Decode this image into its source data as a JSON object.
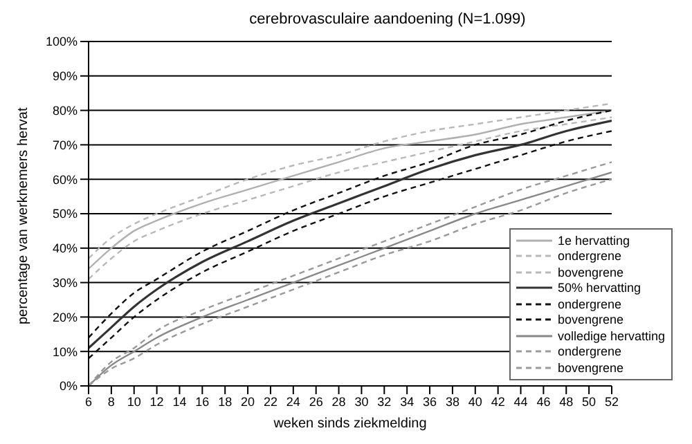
{
  "chart_data": {
    "type": "line",
    "title": "cerebrovasculaire aandoening (N=1.099)",
    "xlabel": "weken sinds ziekmelding",
    "ylabel": "percentage van werknemers hervat",
    "x": [
      6,
      8,
      10,
      12,
      16,
      20,
      24,
      28,
      32,
      36,
      40,
      44,
      48,
      52
    ],
    "series": [
      {
        "name": "1e hervatting",
        "color": "#b0b0b0",
        "line_style": "solid",
        "values": [
          34,
          40,
          45,
          48,
          53,
          57,
          61,
          65,
          69,
          71,
          73,
          76,
          78,
          80
        ]
      },
      {
        "name": "ondergrene",
        "color": "#b8b8b8",
        "line_style": "dashed",
        "values": [
          31,
          37,
          42,
          45,
          50,
          54,
          58,
          62,
          65,
          68,
          71,
          74,
          76,
          78
        ]
      },
      {
        "name": "bovengrene",
        "color": "#b8b8b8",
        "line_style": "dashed",
        "values": [
          37,
          43,
          47,
          50,
          55,
          60,
          64,
          67,
          71,
          74,
          76,
          78,
          80,
          82
        ]
      },
      {
        "name": "50% hervatting",
        "color": "#333333",
        "line_style": "solid",
        "values": [
          11,
          17,
          23,
          28,
          36,
          42,
          48,
          53,
          58,
          63,
          67,
          70,
          74,
          77
        ]
      },
      {
        "name": "ondergrene",
        "color": "#111111",
        "line_style": "dashed",
        "values": [
          8,
          14,
          20,
          25,
          33,
          39,
          45,
          50,
          55,
          59,
          63,
          67,
          71,
          74
        ]
      },
      {
        "name": "bovengrene",
        "color": "#111111",
        "line_style": "dashed",
        "values": [
          14,
          21,
          27,
          31,
          39,
          45,
          51,
          56,
          61,
          65,
          70,
          73,
          77,
          80
        ]
      },
      {
        "name": "volledige hervatting",
        "color": "#888888",
        "line_style": "solid",
        "values": [
          0,
          6,
          10,
          14,
          20,
          25,
          30,
          35,
          40,
          45,
          50,
          54,
          58,
          62
        ]
      },
      {
        "name": "ondergrene",
        "color": "#999999",
        "line_style": "dashed",
        "values": [
          0,
          5,
          8,
          12,
          18,
          23,
          28,
          33,
          38,
          42,
          47,
          51,
          56,
          60
        ]
      },
      {
        "name": "bovengrene",
        "color": "#999999",
        "line_style": "dashed",
        "values": [
          0,
          7,
          11,
          16,
          22,
          27,
          32,
          37,
          42,
          47,
          52,
          57,
          61,
          65
        ]
      }
    ],
    "xlim": [
      6,
      52
    ],
    "xticks": [
      6,
      8,
      10,
      12,
      14,
      16,
      18,
      20,
      22,
      24,
      26,
      28,
      30,
      32,
      34,
      36,
      38,
      40,
      42,
      44,
      46,
      48,
      50,
      52
    ],
    "ylim": [
      0,
      100
    ],
    "yticks": [
      {
        "value": 0,
        "label": "0%"
      },
      {
        "value": 10,
        "label": "10%"
      },
      {
        "value": 20,
        "label": "20%"
      },
      {
        "value": 30,
        "label": "30%"
      },
      {
        "value": 40,
        "label": "40%"
      },
      {
        "value": 50,
        "label": "50%"
      },
      {
        "value": 60,
        "label": "60%"
      },
      {
        "value": 70,
        "label": "70%"
      },
      {
        "value": 80,
        "label": "80%"
      },
      {
        "value": 90,
        "label": "90%"
      },
      {
        "value": 100,
        "label": "100%"
      }
    ],
    "grid": "y",
    "legend": "right",
    "marker": "none"
  }
}
